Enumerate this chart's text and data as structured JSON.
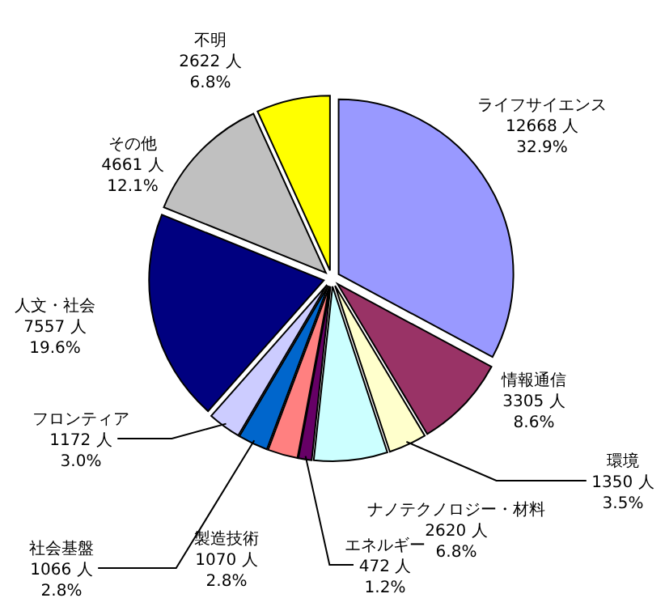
{
  "chart_data": {
    "type": "pie",
    "categories": [
      "ライフサイエンス",
      "情報通信",
      "環境",
      "ナノテクノロジー・材料",
      "エネルギー",
      "製造技術",
      "社会基盤",
      "フロンティア",
      "人文・社会",
      "その他",
      "不明"
    ],
    "values": [
      12668,
      3305,
      1350,
      2620,
      472,
      1070,
      1066,
      1172,
      7557,
      4661,
      2622
    ],
    "colors": [
      "#9999ff",
      "#993366",
      "#ffffcc",
      "#ccffff",
      "#660066",
      "#ff8080",
      "#0066cc",
      "#ccccff",
      "#000080",
      "#c0c0c0",
      "#ffff00"
    ],
    "value_labels": [
      "12668 人\n32.9%",
      "3305 人\n8.6%",
      "1350 人\n3.5%",
      "2620 人\n6.8%",
      "472 人\n1.2%",
      "1070 人\n2.8%",
      "1066 人\n2.8%",
      "1172 人\n3.0%",
      "7557 人\n19.6%",
      "4661 人\n12.1%",
      "2622 人\n6.8%"
    ]
  }
}
